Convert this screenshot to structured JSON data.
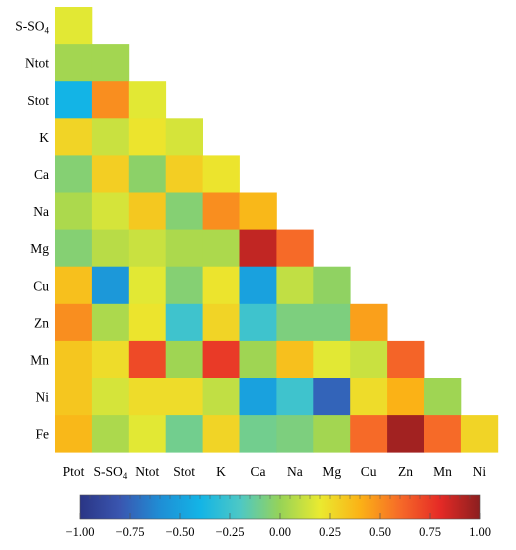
{
  "chart_data": {
    "type": "heatmap",
    "title": "",
    "row_labels": [
      "S-SO4",
      "Ntot",
      "Stot",
      "K",
      "Ca",
      "Na",
      "Mg",
      "Cu",
      "Zn",
      "Mn",
      "Ni",
      "Fe"
    ],
    "col_labels": [
      "Ptot",
      "S-SO4",
      "Ntot",
      "Stot",
      "K",
      "Ca",
      "Na",
      "Mg",
      "Cu",
      "Zn",
      "Mn",
      "Ni"
    ],
    "values": [
      [
        0.18
      ],
      [
        0.03,
        0.03
      ],
      [
        -0.4,
        0.5,
        0.18
      ],
      [
        0.28,
        0.12,
        0.22,
        0.15
      ],
      [
        -0.05,
        0.3,
        -0.03,
        0.3,
        0.22
      ],
      [
        0.05,
        0.15,
        0.32,
        -0.05,
        0.5,
        0.38
      ],
      [
        -0.05,
        0.08,
        0.12,
        0.05,
        0.05,
        0.88,
        0.6
      ],
      [
        0.35,
        -0.55,
        0.18,
        -0.05,
        0.22,
        -0.5,
        0.1,
        -0.02
      ],
      [
        0.5,
        0.05,
        0.22,
        -0.25,
        0.28,
        -0.25,
        -0.07,
        -0.07,
        0.45
      ],
      [
        0.33,
        0.25,
        0.7,
        0.02,
        0.75,
        0.02,
        0.35,
        0.18,
        0.12,
        0.62
      ],
      [
        0.33,
        0.15,
        0.25,
        0.25,
        0.1,
        -0.5,
        -0.25,
        -0.75,
        0.25,
        0.4,
        0.02
      ],
      [
        0.38,
        0.05,
        0.18,
        -0.1,
        0.28,
        -0.1,
        -0.07,
        0.03,
        0.6,
        0.95,
        0.6,
        0.28
      ]
    ],
    "colorbar": {
      "min": -1.0,
      "max": 1.0,
      "ticks": [
        "-1.00",
        "-0.75",
        "-0.50",
        "-0.25",
        "0.00",
        "0.25",
        "0.50",
        "0.75",
        "1.00"
      ],
      "colors": [
        "#2a3585",
        "#3a56b0",
        "#1f8ed5",
        "#13b4e6",
        "#4dc8c5",
        "#97d357",
        "#eaea30",
        "#fbb216",
        "#f66a28",
        "#e52a26",
        "#8b1f1f"
      ]
    }
  }
}
